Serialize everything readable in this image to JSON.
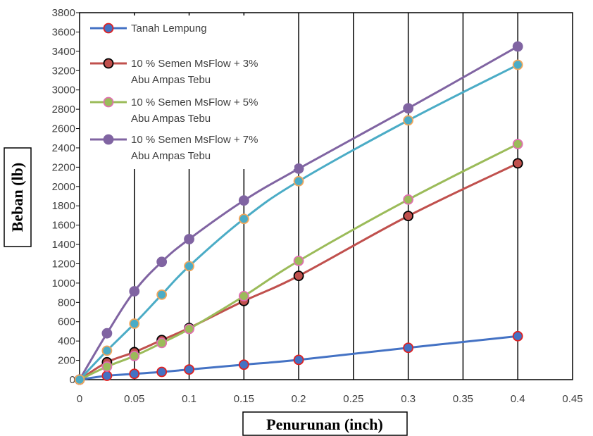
{
  "chart_data": {
    "type": "line",
    "xlabel": "Penurunan (inch)",
    "ylabel": "Beban (lb)",
    "xlim": [
      0,
      0.45
    ],
    "ylim": [
      0,
      3800
    ],
    "xticks": [
      "0",
      "0.05",
      "0.1",
      "0.15",
      "0.2",
      "0.25",
      "0.3",
      "0.35",
      "0.4",
      "0.45"
    ],
    "yticks": [
      "0",
      "200",
      "400",
      "600",
      "800",
      "1000",
      "1200",
      "1400",
      "1600",
      "1800",
      "2000",
      "2200",
      "2400",
      "2600",
      "2800",
      "3000",
      "3200",
      "3400",
      "3600",
      "3800"
    ],
    "grid": "vertical major gridlines",
    "legend_position": "top-left",
    "series": [
      {
        "name": "Tanah Lempung",
        "line_color": "#4472c4",
        "marker_fill": "#4472c4",
        "marker_edge": "#e02020",
        "x": [
          0,
          0.025,
          0.05,
          0.075,
          0.1,
          0.15,
          0.2,
          0.3,
          0.4
        ],
        "y": [
          0,
          40,
          60,
          80,
          105,
          155,
          205,
          330,
          450
        ]
      },
      {
        "name": "10 % Semen MsFlow + 3% Abu Ampas Tebu",
        "line_color": "#c0504d",
        "marker_fill": "#c0504d",
        "marker_edge": "#000000",
        "x": [
          0,
          0.025,
          0.05,
          0.075,
          0.1,
          0.15,
          0.2,
          0.3,
          0.4
        ],
        "y": [
          0,
          180,
          285,
          410,
          535,
          815,
          1075,
          1695,
          2240
        ]
      },
      {
        "name": "10 % Semen MsFlow + 5% Abu Ampas Tebu",
        "line_color": "#9bbb59",
        "marker_fill": "#9bbb59",
        "marker_edge": "#e070b0",
        "x": [
          0,
          0.025,
          0.05,
          0.075,
          0.1,
          0.15,
          0.2,
          0.3,
          0.4
        ],
        "y": [
          0,
          135,
          245,
          380,
          525,
          865,
          1230,
          1865,
          2440
        ]
      },
      {
        "name": "10 % Semen MsFlow + 7% Abu Ampas Tebu",
        "line_color": "#8064a2",
        "marker_fill": "#8064a2",
        "marker_edge": "#8064a2",
        "x": [
          0,
          0.025,
          0.05,
          0.075,
          0.1,
          0.15,
          0.2,
          0.3,
          0.4
        ],
        "y": [
          0,
          480,
          915,
          1220,
          1455,
          1855,
          2185,
          2810,
          3450
        ]
      },
      {
        "name": "",
        "line_color": "#4bacc6",
        "marker_fill": "#4bacc6",
        "marker_edge": "#f2a65a",
        "x": [
          0,
          0.025,
          0.05,
          0.075,
          0.1,
          0.15,
          0.2,
          0.3,
          0.4
        ],
        "y": [
          0,
          300,
          580,
          880,
          1175,
          1665,
          2055,
          2685,
          3260
        ]
      }
    ],
    "legend": [
      {
        "line1": "Tanah Lempung",
        "line2": ""
      },
      {
        "line1": "10 % Semen MsFlow + 3%",
        "line2": "Abu Ampas Tebu"
      },
      {
        "line1": "10 % Semen MsFlow + 5%",
        "line2": "Abu Ampas Tebu"
      },
      {
        "line1": "10 % Semen MsFlow + 7%",
        "line2": "Abu Ampas Tebu"
      }
    ]
  }
}
